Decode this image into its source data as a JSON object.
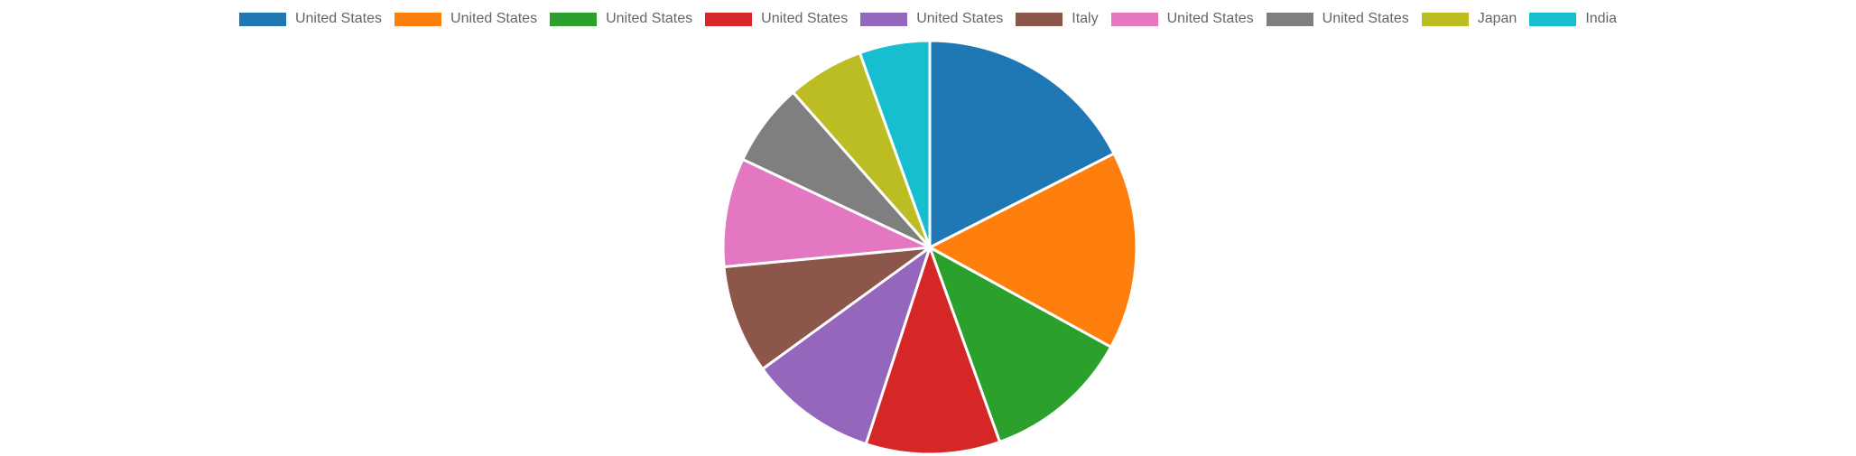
{
  "chart_data": {
    "type": "pie",
    "title": "",
    "legend_position": "top",
    "categories": [
      "United States",
      "United States",
      "United States",
      "United States",
      "United States",
      "Italy",
      "United States",
      "United States",
      "Japan",
      "India"
    ],
    "values": [
      17.5,
      15.5,
      11.5,
      10.5,
      10,
      8.5,
      8.5,
      6.5,
      6,
      5.5
    ],
    "colors": [
      "#1f77b4",
      "#ff7f0e",
      "#2ca02c",
      "#d62728",
      "#9467bd",
      "#8c564b",
      "#e377c2",
      "#7f7f7f",
      "#bcbd22",
      "#17becf"
    ],
    "slice_border_color": "#ffffff"
  }
}
